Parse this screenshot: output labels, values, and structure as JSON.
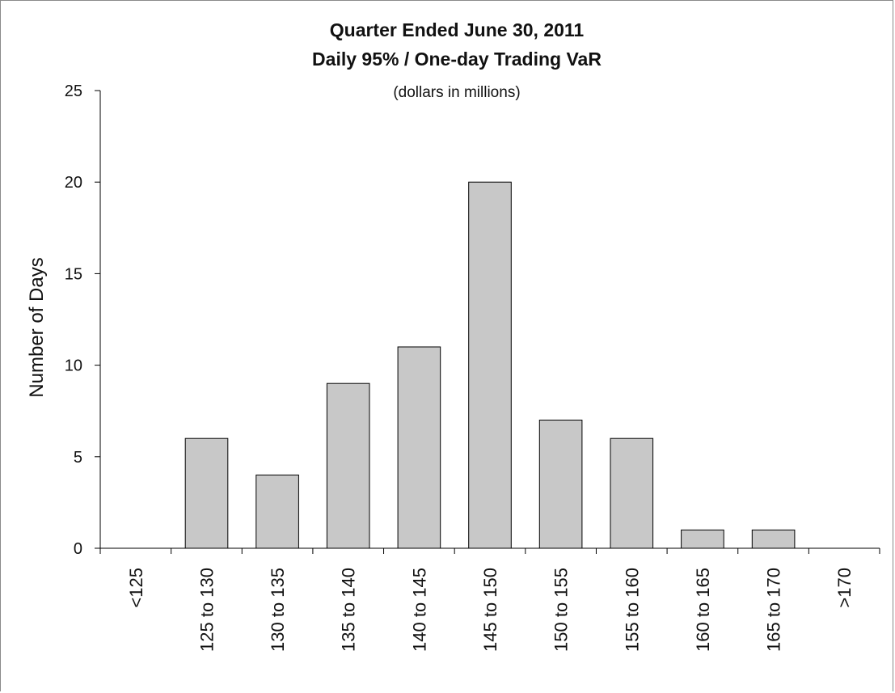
{
  "chart_data": {
    "type": "bar",
    "title": "Quarter Ended June 30, 2011",
    "subtitle": "Daily 95% / One-day Trading VaR",
    "units_note": "(dollars in millions)",
    "xlabel": "",
    "ylabel": "Number of Days",
    "categories": [
      "<125",
      "125 to 130",
      "130 to 135",
      "135 to 140",
      "140 to 145",
      "145 to 150",
      "150 to 155",
      "155 to 160",
      "160 to 165",
      "165 to 170",
      ">170"
    ],
    "values": [
      0,
      6,
      4,
      9,
      11,
      20,
      7,
      6,
      1,
      1,
      0
    ],
    "yticks": [
      0,
      5,
      10,
      15,
      20,
      25
    ],
    "ylim": [
      0,
      25
    ],
    "grid": false,
    "legend": "none",
    "bar_color": "#c8c8c8",
    "bar_edge_color": "#000000"
  }
}
